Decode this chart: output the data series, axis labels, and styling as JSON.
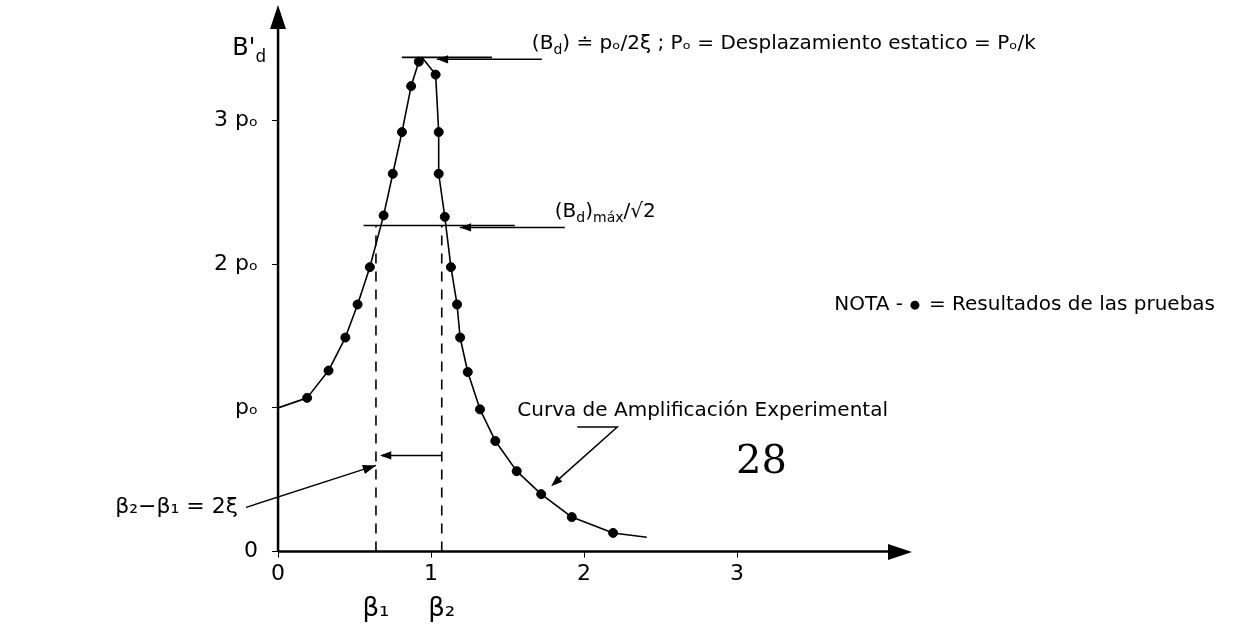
{
  "chart_data": {
    "type": "line",
    "xlim": [
      0,
      4
    ],
    "ylim": [
      0,
      3.65
    ],
    "xticks": [
      0,
      1,
      2,
      3
    ],
    "yticks": [
      0,
      {
        "value": 1,
        "label": "pₒ"
      },
      {
        "value": 2,
        "label": "2 pₒ"
      },
      {
        "value": 3,
        "label": "3 pₒ"
      }
    ],
    "ylabel": "B'$_{d}$",
    "grid": false,
    "legend": "right",
    "legend_title": "NOTA -",
    "series": [
      {
        "name": "Curva de Amplificación Experimental",
        "marker": "none",
        "color": "#000000",
        "x": [
          0,
          0.19,
          0.33,
          0.44,
          0.52,
          0.6,
          0.69,
          0.75,
          0.81,
          0.87,
          0.92,
          0.94,
          1.03,
          1.05,
          1.05,
          1.09,
          1.13,
          1.17,
          1.19,
          1.24,
          1.32,
          1.42,
          1.56,
          1.72,
          1.92,
          2.19,
          2.41
        ],
        "values": [
          1.0,
          1.07,
          1.26,
          1.49,
          1.72,
          1.98,
          2.34,
          2.63,
          2.92,
          3.24,
          3.41,
          3.44,
          3.32,
          2.92,
          2.63,
          2.33,
          1.98,
          1.72,
          1.49,
          1.25,
          0.99,
          0.77,
          0.56,
          0.4,
          0.24,
          0.13,
          0.1
        ]
      },
      {
        "name": "= Resultados de las pruebas",
        "type": "scatter",
        "marker": "circle",
        "color": "#000000",
        "x": [
          0.19,
          0.33,
          0.44,
          0.52,
          0.6,
          0.69,
          0.75,
          0.81,
          0.87,
          0.92,
          1.03,
          1.05,
          1.05,
          1.09,
          1.13,
          1.17,
          1.19,
          1.24,
          1.32,
          1.42,
          1.56,
          1.72,
          1.92,
          2.19
        ],
        "values": [
          1.07,
          1.26,
          1.49,
          1.72,
          1.98,
          2.34,
          2.63,
          2.92,
          3.24,
          3.41,
          3.32,
          2.92,
          2.63,
          2.33,
          1.98,
          1.72,
          1.49,
          1.25,
          0.99,
          0.77,
          0.56,
          0.4,
          0.24,
          0.13
        ]
      }
    ],
    "ref_lines": [
      {
        "axis": "x",
        "value": 0.64,
        "label": "β₁",
        "line_style": "dashed"
      },
      {
        "axis": "x",
        "value": 1.07,
        "label": "β₂",
        "line_style": "dashed"
      },
      {
        "axis": "y",
        "value": 2.27,
        "label": "(B$_{d}$)$_{máx}$/√2"
      },
      {
        "axis": "y",
        "value": 3.44,
        "label": "(B$_{d}$) ≐ pₒ/2ξ ; Pₒ = Desplazamiento estatico = Pₒ/k"
      }
    ],
    "annotations": [
      {
        "text": "β₂−β₁ = 2ξ",
        "x": 0.64,
        "y": 0.6
      },
      "28"
    ]
  }
}
